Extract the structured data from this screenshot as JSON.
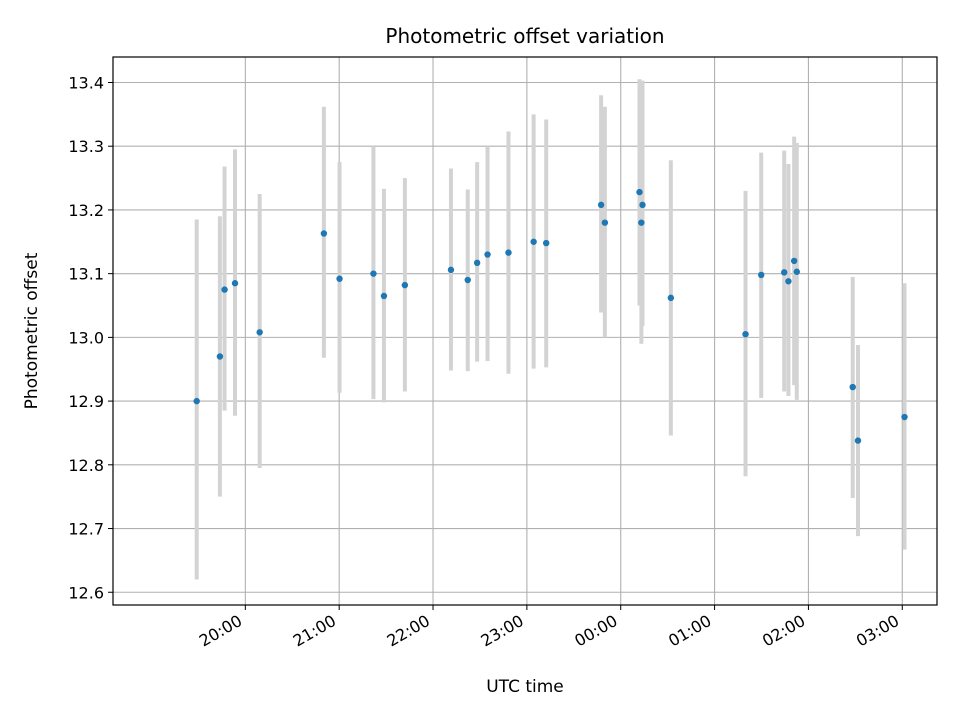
{
  "chart_data": {
    "type": "scatter",
    "title": "Photometric offset variation",
    "xlabel": "UTC time",
    "ylabel": "Photometric offset",
    "x_unit": "UTC time of night, continuing past midnight (hours)",
    "xlim": [
      18.59,
      27.37
    ],
    "ylim": [
      12.58,
      13.44
    ],
    "x_ticks": [
      {
        "x": 20,
        "label": "20:00"
      },
      {
        "x": 21,
        "label": "21:00"
      },
      {
        "x": 22,
        "label": "22:00"
      },
      {
        "x": 23,
        "label": "23:00"
      },
      {
        "x": 24,
        "label": "00:00"
      },
      {
        "x": 25,
        "label": "01:00"
      },
      {
        "x": 26,
        "label": "02:00"
      },
      {
        "x": 27,
        "label": "03:00"
      }
    ],
    "y_ticks": [
      {
        "y": 12.6,
        "label": "12.6"
      },
      {
        "y": 12.7,
        "label": "12.7"
      },
      {
        "y": 12.8,
        "label": "12.8"
      },
      {
        "y": 12.9,
        "label": "12.9"
      },
      {
        "y": 13.0,
        "label": "13.0"
      },
      {
        "y": 13.1,
        "label": "13.1"
      },
      {
        "y": 13.2,
        "label": "13.2"
      },
      {
        "y": 13.3,
        "label": "13.3"
      },
      {
        "y": 13.4,
        "label": "13.4"
      }
    ],
    "grid": true,
    "colors": {
      "point": "#1f77b4",
      "errorbar": "#d3d3d3",
      "grid": "#b0b0b0"
    },
    "points": [
      {
        "x": 19.482,
        "y": 12.9,
        "ylo": 12.62,
        "yhi": 13.185
      },
      {
        "x": 19.729,
        "y": 12.97,
        "ylo": 12.75,
        "yhi": 13.19
      },
      {
        "x": 19.779,
        "y": 13.075,
        "ylo": 12.885,
        "yhi": 13.268
      },
      {
        "x": 19.89,
        "y": 13.085,
        "ylo": 12.877,
        "yhi": 13.295
      },
      {
        "x": 20.153,
        "y": 13.008,
        "ylo": 12.795,
        "yhi": 13.225
      },
      {
        "x": 20.837,
        "y": 13.163,
        "ylo": 12.968,
        "yhi": 13.362
      },
      {
        "x": 21.004,
        "y": 13.092,
        "ylo": 12.913,
        "yhi": 13.275
      },
      {
        "x": 21.365,
        "y": 13.1,
        "ylo": 12.903,
        "yhi": 13.3
      },
      {
        "x": 21.477,
        "y": 13.065,
        "ylo": 12.898,
        "yhi": 13.233
      },
      {
        "x": 21.7,
        "y": 13.082,
        "ylo": 12.915,
        "yhi": 13.25
      },
      {
        "x": 22.191,
        "y": 13.106,
        "ylo": 12.948,
        "yhi": 13.265
      },
      {
        "x": 22.37,
        "y": 13.09,
        "ylo": 12.947,
        "yhi": 13.232
      },
      {
        "x": 22.47,
        "y": 13.117,
        "ylo": 12.962,
        "yhi": 13.275
      },
      {
        "x": 22.581,
        "y": 13.13,
        "ylo": 12.963,
        "yhi": 13.3
      },
      {
        "x": 22.804,
        "y": 13.133,
        "ylo": 12.943,
        "yhi": 13.323
      },
      {
        "x": 23.072,
        "y": 13.15,
        "ylo": 12.951,
        "yhi": 13.35
      },
      {
        "x": 23.206,
        "y": 13.148,
        "ylo": 12.953,
        "yhi": 13.342
      },
      {
        "x": 23.791,
        "y": 13.208,
        "ylo": 13.039,
        "yhi": 13.38
      },
      {
        "x": 23.831,
        "y": 13.18,
        "ylo": 13.0,
        "yhi": 13.362
      },
      {
        "x": 24.2,
        "y": 13.228,
        "ylo": 13.05,
        "yhi": 13.405
      },
      {
        "x": 24.22,
        "y": 13.18,
        "ylo": 12.99,
        "yhi": 13.37
      },
      {
        "x": 24.232,
        "y": 13.208,
        "ylo": 13.018,
        "yhi": 13.403
      },
      {
        "x": 24.534,
        "y": 13.062,
        "ylo": 12.846,
        "yhi": 13.278
      },
      {
        "x": 25.33,
        "y": 13.005,
        "ylo": 12.782,
        "yhi": 13.23
      },
      {
        "x": 25.497,
        "y": 13.098,
        "ylo": 12.905,
        "yhi": 13.29
      },
      {
        "x": 25.742,
        "y": 13.102,
        "ylo": 12.915,
        "yhi": 13.293
      },
      {
        "x": 25.787,
        "y": 13.088,
        "ylo": 12.908,
        "yhi": 13.272
      },
      {
        "x": 25.848,
        "y": 13.12,
        "ylo": 12.925,
        "yhi": 13.315
      },
      {
        "x": 25.876,
        "y": 13.103,
        "ylo": 12.902,
        "yhi": 13.305
      },
      {
        "x": 26.472,
        "y": 12.922,
        "ylo": 12.748,
        "yhi": 13.095
      },
      {
        "x": 26.528,
        "y": 12.838,
        "ylo": 12.688,
        "yhi": 12.988
      },
      {
        "x": 27.024,
        "y": 12.875,
        "ylo": 12.667,
        "yhi": 13.085
      }
    ]
  }
}
